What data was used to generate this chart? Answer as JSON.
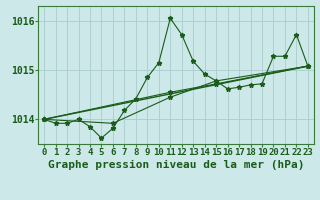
{
  "title": "Graphe pression niveau de la mer (hPa)",
  "background_color": "#cce8e8",
  "plot_background": "#cce8e8",
  "grid_color": "#aacccc",
  "line_color": "#1a5c1a",
  "xlim": [
    -0.5,
    23.5
  ],
  "ylim": [
    1013.5,
    1016.3
  ],
  "xticks": [
    0,
    1,
    2,
    3,
    4,
    5,
    6,
    7,
    8,
    9,
    10,
    11,
    12,
    13,
    14,
    15,
    16,
    17,
    18,
    19,
    20,
    21,
    22,
    23
  ],
  "yticks": [
    1014,
    1015,
    1016
  ],
  "series1_x": [
    0,
    1,
    2,
    3,
    4,
    5,
    6,
    7,
    8,
    9,
    10,
    11,
    12,
    13,
    14,
    15,
    16,
    17,
    18,
    19,
    20,
    21,
    22,
    23
  ],
  "series1_y": [
    1014.0,
    1013.92,
    1013.92,
    1014.0,
    1013.85,
    1013.62,
    1013.82,
    1014.18,
    1014.42,
    1014.85,
    1015.15,
    1016.05,
    1015.72,
    1015.18,
    1014.92,
    1014.78,
    1014.62,
    1014.65,
    1014.7,
    1014.72,
    1015.28,
    1015.28,
    1015.72,
    1015.08
  ],
  "series2_x": [
    0,
    23
  ],
  "series2_y": [
    1014.0,
    1015.08
  ],
  "series3_x": [
    0,
    11,
    15,
    23
  ],
  "series3_y": [
    1014.0,
    1014.55,
    1014.72,
    1015.08
  ],
  "series4_x": [
    0,
    6,
    11,
    15,
    23
  ],
  "series4_y": [
    1014.0,
    1013.92,
    1014.45,
    1014.78,
    1015.08
  ],
  "marker": "*",
  "marker_size": 3.5,
  "title_fontsize": 8,
  "tick_fontsize": 6.5
}
